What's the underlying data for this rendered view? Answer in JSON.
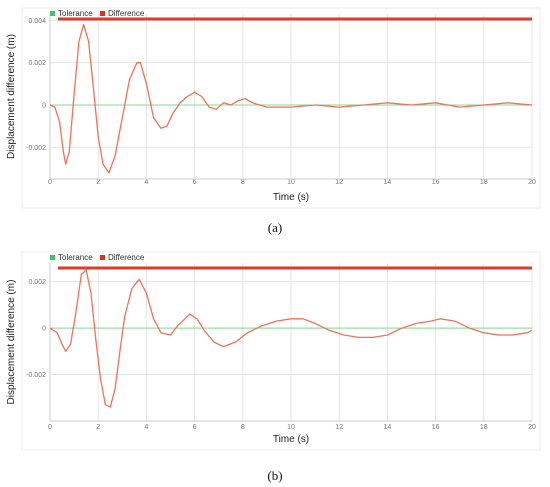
{
  "colors": {
    "tolerance": "#7fdc8f",
    "difference": "#f2715a",
    "difference_legend": "#e0301e",
    "tolerance_legend": "#3cc46a",
    "grid": "#e6e6e6"
  },
  "chart_data": [
    {
      "type": "line",
      "caption": "(a)",
      "legend": [
        "Tolerance",
        "Difference"
      ],
      "legend_position": "top-left",
      "xlabel": "Time (s)",
      "ylabel": "Displacement difference (m)",
      "xlim": [
        0,
        20
      ],
      "ylim": [
        -0.0035,
        0.0043
      ],
      "xticks": [
        0,
        2,
        4,
        6,
        8,
        10,
        12,
        14,
        16,
        18,
        20
      ],
      "yticks": [
        -0.002,
        0,
        0.002,
        0.004
      ],
      "ytick_labels": [
        "-0.002",
        "0",
        "0.002",
        "0.004"
      ],
      "grid": true,
      "series": [
        {
          "name": "Tolerance",
          "x": [
            0,
            20
          ],
          "y": [
            0,
            0
          ]
        },
        {
          "name": "Difference",
          "x": [
            0,
            0.2,
            0.4,
            0.55,
            0.65,
            0.8,
            1.0,
            1.2,
            1.4,
            1.6,
            1.8,
            2.0,
            2.2,
            2.45,
            2.7,
            3.0,
            3.3,
            3.6,
            3.75,
            4.0,
            4.3,
            4.6,
            4.85,
            5.1,
            5.4,
            5.7,
            6.0,
            6.3,
            6.6,
            6.9,
            7.2,
            7.5,
            7.8,
            8.1,
            8.4,
            8.7,
            9.0,
            9.5,
            10,
            11,
            12,
            13,
            14,
            15,
            16,
            17,
            18,
            19,
            20
          ],
          "y": [
            0,
            -0.0001,
            -0.0008,
            -0.0022,
            -0.0028,
            -0.0022,
            0.0005,
            0.003,
            0.0038,
            0.003,
            0.0008,
            -0.0015,
            -0.0028,
            -0.0032,
            -0.0024,
            -0.0006,
            0.0012,
            0.002,
            0.002,
            0.001,
            -0.0006,
            -0.0011,
            -0.001,
            -0.0004,
            0.0001,
            0.0004,
            0.0006,
            0.0004,
            -0.0001,
            -0.0002,
            0.0001,
            0.0,
            0.0002,
            0.0003,
            0.0001,
            0.0,
            -0.0001,
            -0.0001,
            -0.0001,
            0.0,
            -0.0001,
            0.0,
            0.0001,
            0.0,
            0.0001,
            -0.0001,
            0.0,
            0.0001,
            0.0
          ]
        }
      ]
    },
    {
      "type": "line",
      "caption": "(b)",
      "legend": [
        "Tolerance",
        "Difference"
      ],
      "legend_position": "top-left",
      "xlabel": "Time (s)",
      "ylabel": "Displacement difference (m)",
      "xlim": [
        0,
        20
      ],
      "ylim": [
        -0.004,
        0.0028
      ],
      "xticks": [
        0,
        2,
        4,
        6,
        8,
        10,
        12,
        14,
        16,
        18,
        20
      ],
      "yticks": [
        -0.002,
        0,
        0.002
      ],
      "ytick_labels": [
        "-0.002",
        "0",
        "0.002"
      ],
      "grid": true,
      "series": [
        {
          "name": "Tolerance",
          "x": [
            0,
            20
          ],
          "y": [
            0,
            0
          ]
        },
        {
          "name": "Difference",
          "x": [
            0,
            0.3,
            0.5,
            0.65,
            0.85,
            1.05,
            1.3,
            1.5,
            1.7,
            1.9,
            2.1,
            2.3,
            2.5,
            2.7,
            2.9,
            3.1,
            3.4,
            3.7,
            4.0,
            4.3,
            4.6,
            5.0,
            5.3,
            5.6,
            5.8,
            6.1,
            6.4,
            6.8,
            7.2,
            7.7,
            8.2,
            8.8,
            9.4,
            10.0,
            10.5,
            11.0,
            11.6,
            12.2,
            12.8,
            13.4,
            14.0,
            14.6,
            15.2,
            15.8,
            16.2,
            16.8,
            17.4,
            18.0,
            18.6,
            19.2,
            19.8,
            20
          ],
          "y": [
            0,
            -0.0002,
            -0.0007,
            -0.001,
            -0.0007,
            0.0005,
            0.0023,
            0.0025,
            0.0015,
            -0.0005,
            -0.0022,
            -0.0033,
            -0.0034,
            -0.0026,
            -0.001,
            0.0005,
            0.0017,
            0.0021,
            0.0015,
            0.0004,
            -0.0002,
            -0.0003,
            0.0001,
            0.0004,
            0.0006,
            0.0004,
            -0.0001,
            -0.0006,
            -0.0008,
            -0.0006,
            -0.0002,
            0.0001,
            0.0003,
            0.0004,
            0.0004,
            0.0002,
            -0.0001,
            -0.0003,
            -0.0004,
            -0.0004,
            -0.0003,
            0.0,
            0.0002,
            0.0003,
            0.0004,
            0.0003,
            0.0,
            -0.0002,
            -0.0003,
            -0.0003,
            -0.0002,
            -0.0001
          ]
        }
      ]
    }
  ]
}
